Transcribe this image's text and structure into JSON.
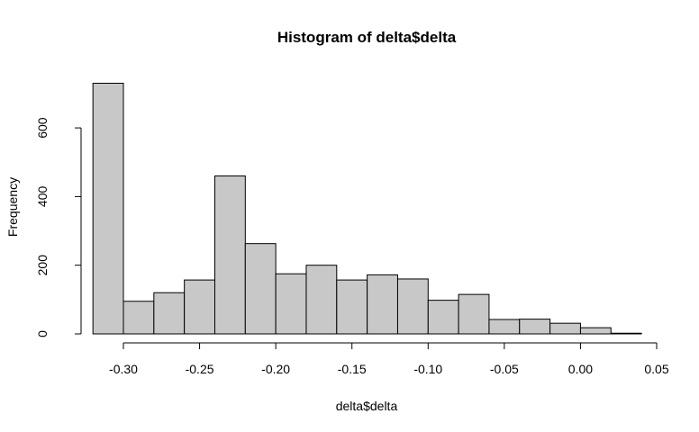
{
  "chart_data": {
    "type": "bar",
    "title": "Histogram of delta$delta",
    "xlabel": "delta$delta",
    "ylabel": "Frequency",
    "bar_color": "#c8c8c8",
    "bar_border": "#000000",
    "xlim": [
      -0.32,
      0.05
    ],
    "ylim": [
      0,
      730
    ],
    "x_ticks": [
      -0.3,
      -0.25,
      -0.2,
      -0.15,
      -0.1,
      -0.05,
      0.0,
      0.05
    ],
    "x_tick_labels": [
      "-0.30",
      "-0.25",
      "-0.20",
      "-0.15",
      "-0.10",
      "-0.05",
      "0.00",
      "0.05"
    ],
    "y_ticks": [
      0,
      200,
      400,
      600
    ],
    "y_tick_labels": [
      "0",
      "200",
      "400",
      "600"
    ],
    "bins": [
      {
        "start": -0.32,
        "end": -0.3,
        "count": 730
      },
      {
        "start": -0.3,
        "end": -0.28,
        "count": 95
      },
      {
        "start": -0.28,
        "end": -0.26,
        "count": 120
      },
      {
        "start": -0.26,
        "end": -0.24,
        "count": 157
      },
      {
        "start": -0.24,
        "end": -0.22,
        "count": 460
      },
      {
        "start": -0.22,
        "end": -0.2,
        "count": 263
      },
      {
        "start": -0.2,
        "end": -0.18,
        "count": 175
      },
      {
        "start": -0.18,
        "end": -0.16,
        "count": 200
      },
      {
        "start": -0.16,
        "end": -0.14,
        "count": 157
      },
      {
        "start": -0.14,
        "end": -0.12,
        "count": 172
      },
      {
        "start": -0.12,
        "end": -0.1,
        "count": 160
      },
      {
        "start": -0.1,
        "end": -0.08,
        "count": 98
      },
      {
        "start": -0.08,
        "end": -0.06,
        "count": 115
      },
      {
        "start": -0.06,
        "end": -0.04,
        "count": 42
      },
      {
        "start": -0.04,
        "end": -0.02,
        "count": 43
      },
      {
        "start": -0.02,
        "end": 0.0,
        "count": 31
      },
      {
        "start": 0.0,
        "end": 0.02,
        "count": 18
      },
      {
        "start": 0.02,
        "end": 0.04,
        "count": 2
      }
    ]
  }
}
